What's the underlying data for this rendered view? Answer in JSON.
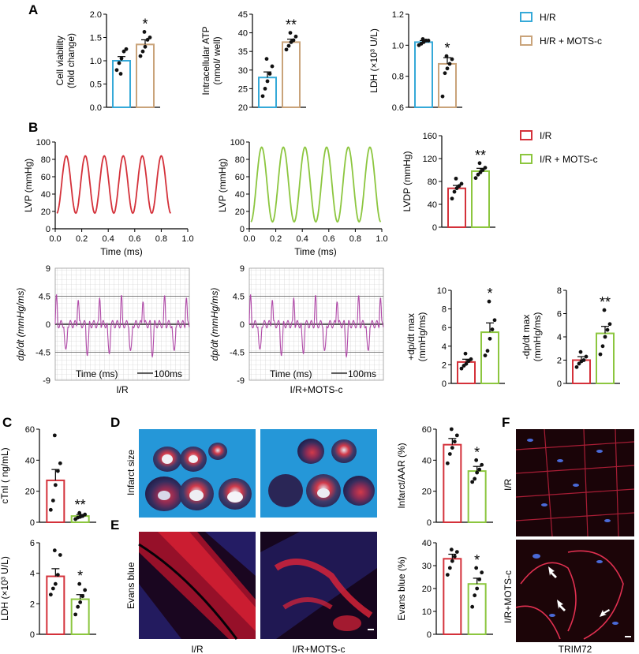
{
  "panel_letters": {
    "A": "A",
    "B": "B",
    "C": "C",
    "D": "D",
    "E": "E",
    "F": "F"
  },
  "colors": {
    "hr": "#35a9d8",
    "hr_mots": "#c9a37a",
    "ir": "#d4313a",
    "ir_mots": "#8cc63f",
    "dpdt": "#b04aa8",
    "point": "#111111"
  },
  "legend_A": {
    "items": [
      "H/R",
      "H/R + MOTS-c"
    ]
  },
  "legend_B": {
    "items": [
      "I/R",
      "I/R + MOTS-c"
    ]
  },
  "trace_axes": {
    "lvp_ylabel": "LVP (mmHg)",
    "lvp_xlabel": "Time (ms)",
    "lvp_yticks": [
      "0",
      "20",
      "40",
      "60",
      "80",
      "100"
    ],
    "lvp_xticks": [
      "0.0",
      "0.2",
      "0.4",
      "0.6",
      "0.8",
      "1.0"
    ],
    "dpdt_ylabel": "dp/dt (mmHg/ms)",
    "dpdt_yticks": [
      "9",
      "4.5",
      "0",
      "-4.5",
      "-9"
    ],
    "dpdt_xlabel": "Time (ms)",
    "scale_label": "100ms",
    "caption_ir": "I/R",
    "caption_irm": "I/R+MOTS-c"
  },
  "image_labels": {
    "infarct_size": "Infarct size",
    "evans_blue": "Evans blue",
    "ir": "I/R",
    "irm": "I/R+MOTS-c",
    "F_ir": "I/R",
    "F_irm": "I/R+MOTS-c",
    "trim": "TRIM72"
  },
  "chart_data": [
    {
      "id": "A1",
      "type": "bar",
      "title": "",
      "ylabel": "Cell viability (fold change)",
      "ylabel_lines": [
        "Cell viability",
        "(fold change)"
      ],
      "yticks": [
        "0.0",
        "0.5",
        "1.0",
        "1.5",
        "2.0"
      ],
      "ylim": [
        0,
        2.0
      ],
      "categories": [
        "H/R",
        "H/R + MOTS-c"
      ],
      "values": [
        1.0,
        1.35
      ],
      "sem": [
        0.09,
        0.1
      ],
      "points": [
        [
          0.8,
          0.95,
          1.05,
          1.2,
          1.25,
          0.72
        ],
        [
          1.1,
          1.2,
          1.3,
          1.45,
          1.5,
          1.62
        ]
      ],
      "significance": "*"
    },
    {
      "id": "A2",
      "type": "bar",
      "title": "",
      "ylabel": "Intracellular ATP (nmol/ well)",
      "ylabel_lines": [
        "Intracellular ATP",
        "(nmol/ well)"
      ],
      "yticks": [
        "20",
        "25",
        "30",
        "35",
        "40",
        "45"
      ],
      "ylim": [
        20,
        45
      ],
      "categories": [
        "H/R",
        "H/R + MOTS-c"
      ],
      "values": [
        28,
        37.5
      ],
      "sem": [
        1.5,
        0.8
      ],
      "points": [
        [
          23,
          25,
          27,
          29,
          31,
          33
        ],
        [
          35.5,
          36.5,
          37.5,
          38,
          39,
          40
        ]
      ],
      "significance": "**"
    },
    {
      "id": "A3",
      "type": "bar",
      "title": "",
      "ylabel": "LDH (×10³ U/L)",
      "ylabel_lines": [
        "LDH (×10³ U/L)"
      ],
      "yticks": [
        "0.6",
        "0.8",
        "1.0",
        "1.2"
      ],
      "ylim": [
        0.6,
        1.2
      ],
      "categories": [
        "H/R",
        "H/R + MOTS-c"
      ],
      "values": [
        1.02,
        0.88
      ],
      "sem": [
        0.01,
        0.04
      ],
      "points": [
        [
          1.0,
          1.01,
          1.02,
          1.03,
          1.03,
          1.04
        ],
        [
          0.67,
          0.82,
          0.85,
          0.88,
          0.91,
          0.93
        ]
      ],
      "significance": "*"
    },
    {
      "id": "B_LVDP",
      "type": "bar",
      "title": "",
      "ylabel": "LVDP (mmHg)",
      "ylabel_lines": [
        "LVDP (mmHg)"
      ],
      "yticks": [
        "0",
        "40",
        "80",
        "120",
        "160"
      ],
      "ylim": [
        0,
        160
      ],
      "categories": [
        "I/R",
        "I/R + MOTS-c"
      ],
      "values": [
        68,
        98
      ],
      "sem": [
        5,
        5
      ],
      "points": [
        [
          50,
          62,
          68,
          72,
          76,
          85
        ],
        [
          86,
          92,
          96,
          100,
          104,
          112
        ]
      ],
      "significance": "**"
    },
    {
      "id": "B_dpmax",
      "type": "bar",
      "title": "",
      "ylabel": "+dp/dt_max (mmHg/ms)",
      "ylabel_lines": [
        "+dp/dt max",
        "(mmHg/ms)"
      ],
      "yticks": [
        "0",
        "2",
        "4",
        "6",
        "8",
        "10"
      ],
      "ylim": [
        0,
        10
      ],
      "categories": [
        "I/R",
        "I/R + MOTS-c"
      ],
      "values": [
        2.3,
        5.5
      ],
      "sem": [
        0.3,
        1.0
      ],
      "points": [
        [
          1.6,
          1.9,
          2.1,
          2.4,
          2.6,
          3.2
        ],
        [
          3.0,
          3.5,
          4.8,
          5.8,
          6.8,
          8.8
        ]
      ],
      "significance": "*"
    },
    {
      "id": "B_dpmin",
      "type": "bar",
      "title": "",
      "ylabel": "-dp/dt_max (mmHg/ms)",
      "ylabel_lines": [
        "-dp/dt max",
        "(mmHg/ms)"
      ],
      "yticks": [
        "0",
        "2",
        "4",
        "6",
        "8"
      ],
      "ylim": [
        0,
        8
      ],
      "categories": [
        "I/R",
        "I/R + MOTS-c"
      ],
      "values": [
        2.0,
        4.3
      ],
      "sem": [
        0.3,
        0.6
      ],
      "points": [
        [
          1.4,
          1.7,
          1.9,
          2.0,
          2.3,
          2.7
        ],
        [
          2.5,
          3.2,
          4.0,
          4.6,
          5.1,
          6.3
        ]
      ],
      "significance": "**"
    },
    {
      "id": "C1",
      "type": "bar",
      "title": "",
      "ylabel": "cTnI ( ng/mL)",
      "ylabel_lines": [
        "cTnI ( ng/mL)"
      ],
      "yticks": [
        "0",
        "20",
        "40",
        "60"
      ],
      "ylim": [
        0,
        60
      ],
      "categories": [
        "I/R",
        "I/R + MOTS-c"
      ],
      "values": [
        27,
        4
      ],
      "sem": [
        7,
        1
      ],
      "points": [
        [
          8,
          14,
          24,
          33,
          38,
          56
        ],
        [
          2,
          3,
          3.5,
          4,
          5,
          6
        ]
      ],
      "significance": "**"
    },
    {
      "id": "C2",
      "type": "bar",
      "title": "",
      "ylabel": "LDH (×10³ U/L)",
      "ylabel_lines": [
        "LDH (×10³ U/L)"
      ],
      "yticks": [
        "0",
        "2",
        "4",
        "6"
      ],
      "ylim": [
        0,
        6
      ],
      "categories": [
        "I/R",
        "I/R + MOTS-c"
      ],
      "values": [
        3.8,
        2.3
      ],
      "sem": [
        0.5,
        0.3
      ],
      "points": [
        [
          2.6,
          3.0,
          3.3,
          3.9,
          5.2,
          5.5
        ],
        [
          1.3,
          1.8,
          2.1,
          2.5,
          2.9,
          3.3
        ]
      ],
      "significance": "*"
    },
    {
      "id": "D",
      "type": "bar",
      "title": "",
      "ylabel": "Infarct/AAR (%)",
      "ylabel_lines": [
        "Infarct/AAR (%)"
      ],
      "yticks": [
        "0",
        "20",
        "40",
        "60"
      ],
      "ylim": [
        0,
        60
      ],
      "categories": [
        "I/R",
        "I/R + MOTS-c"
      ],
      "values": [
        50,
        33
      ],
      "sem": [
        4,
        3
      ],
      "points": [
        [
          38,
          44,
          48,
          52,
          56,
          60
        ],
        [
          26,
          28,
          32,
          34,
          37,
          40
        ]
      ],
      "significance": "*"
    },
    {
      "id": "E",
      "type": "bar",
      "title": "",
      "ylabel": "Evans blue (%)",
      "ylabel_lines": [
        "Evans blue (%)"
      ],
      "yticks": [
        "0",
        "10",
        "20",
        "30",
        "40"
      ],
      "ylim": [
        0,
        40
      ],
      "categories": [
        "I/R",
        "I/R + MOTS-c"
      ],
      "values": [
        33,
        22
      ],
      "sem": [
        2,
        2.5
      ],
      "points": [
        [
          26,
          29,
          32,
          34,
          36,
          37
        ],
        [
          12,
          17,
          20,
          24,
          27,
          29
        ]
      ],
      "significance": "*"
    }
  ]
}
